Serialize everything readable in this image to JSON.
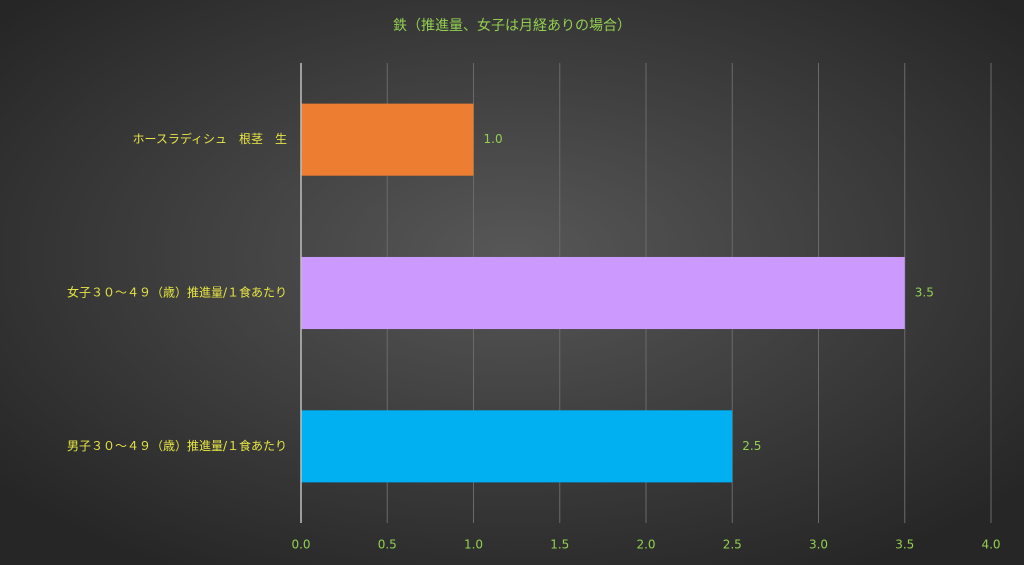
{
  "chart_data": {
    "type": "hbar",
    "title": "鉄（推進量、女子は月経ありの場合）",
    "categories": [
      "ホースラディシュ　根茎　生",
      "女子３０～４９（歳）推進量/１食あたり",
      "男子３０～４９（歳）推進量/１食あたり"
    ],
    "values": [
      1.0,
      3.5,
      2.5
    ],
    "value_labels": [
      "1.0",
      "3.5",
      "2.5"
    ],
    "colors": [
      "#ed7d31",
      "#cc99ff",
      "#00b0f0"
    ],
    "xlim": [
      0,
      4
    ],
    "xticks": [
      {
        "value": 0,
        "label": "0.0"
      },
      0.5,
      {
        "value": 1,
        "label": "1.0"
      },
      1.5,
      {
        "value": 2,
        "label": "2.0"
      },
      2.5,
      {
        "value": 3,
        "label": "3.0"
      },
      3.5,
      {
        "value": 4,
        "label": "4.0"
      }
    ],
    "grid": true
  }
}
